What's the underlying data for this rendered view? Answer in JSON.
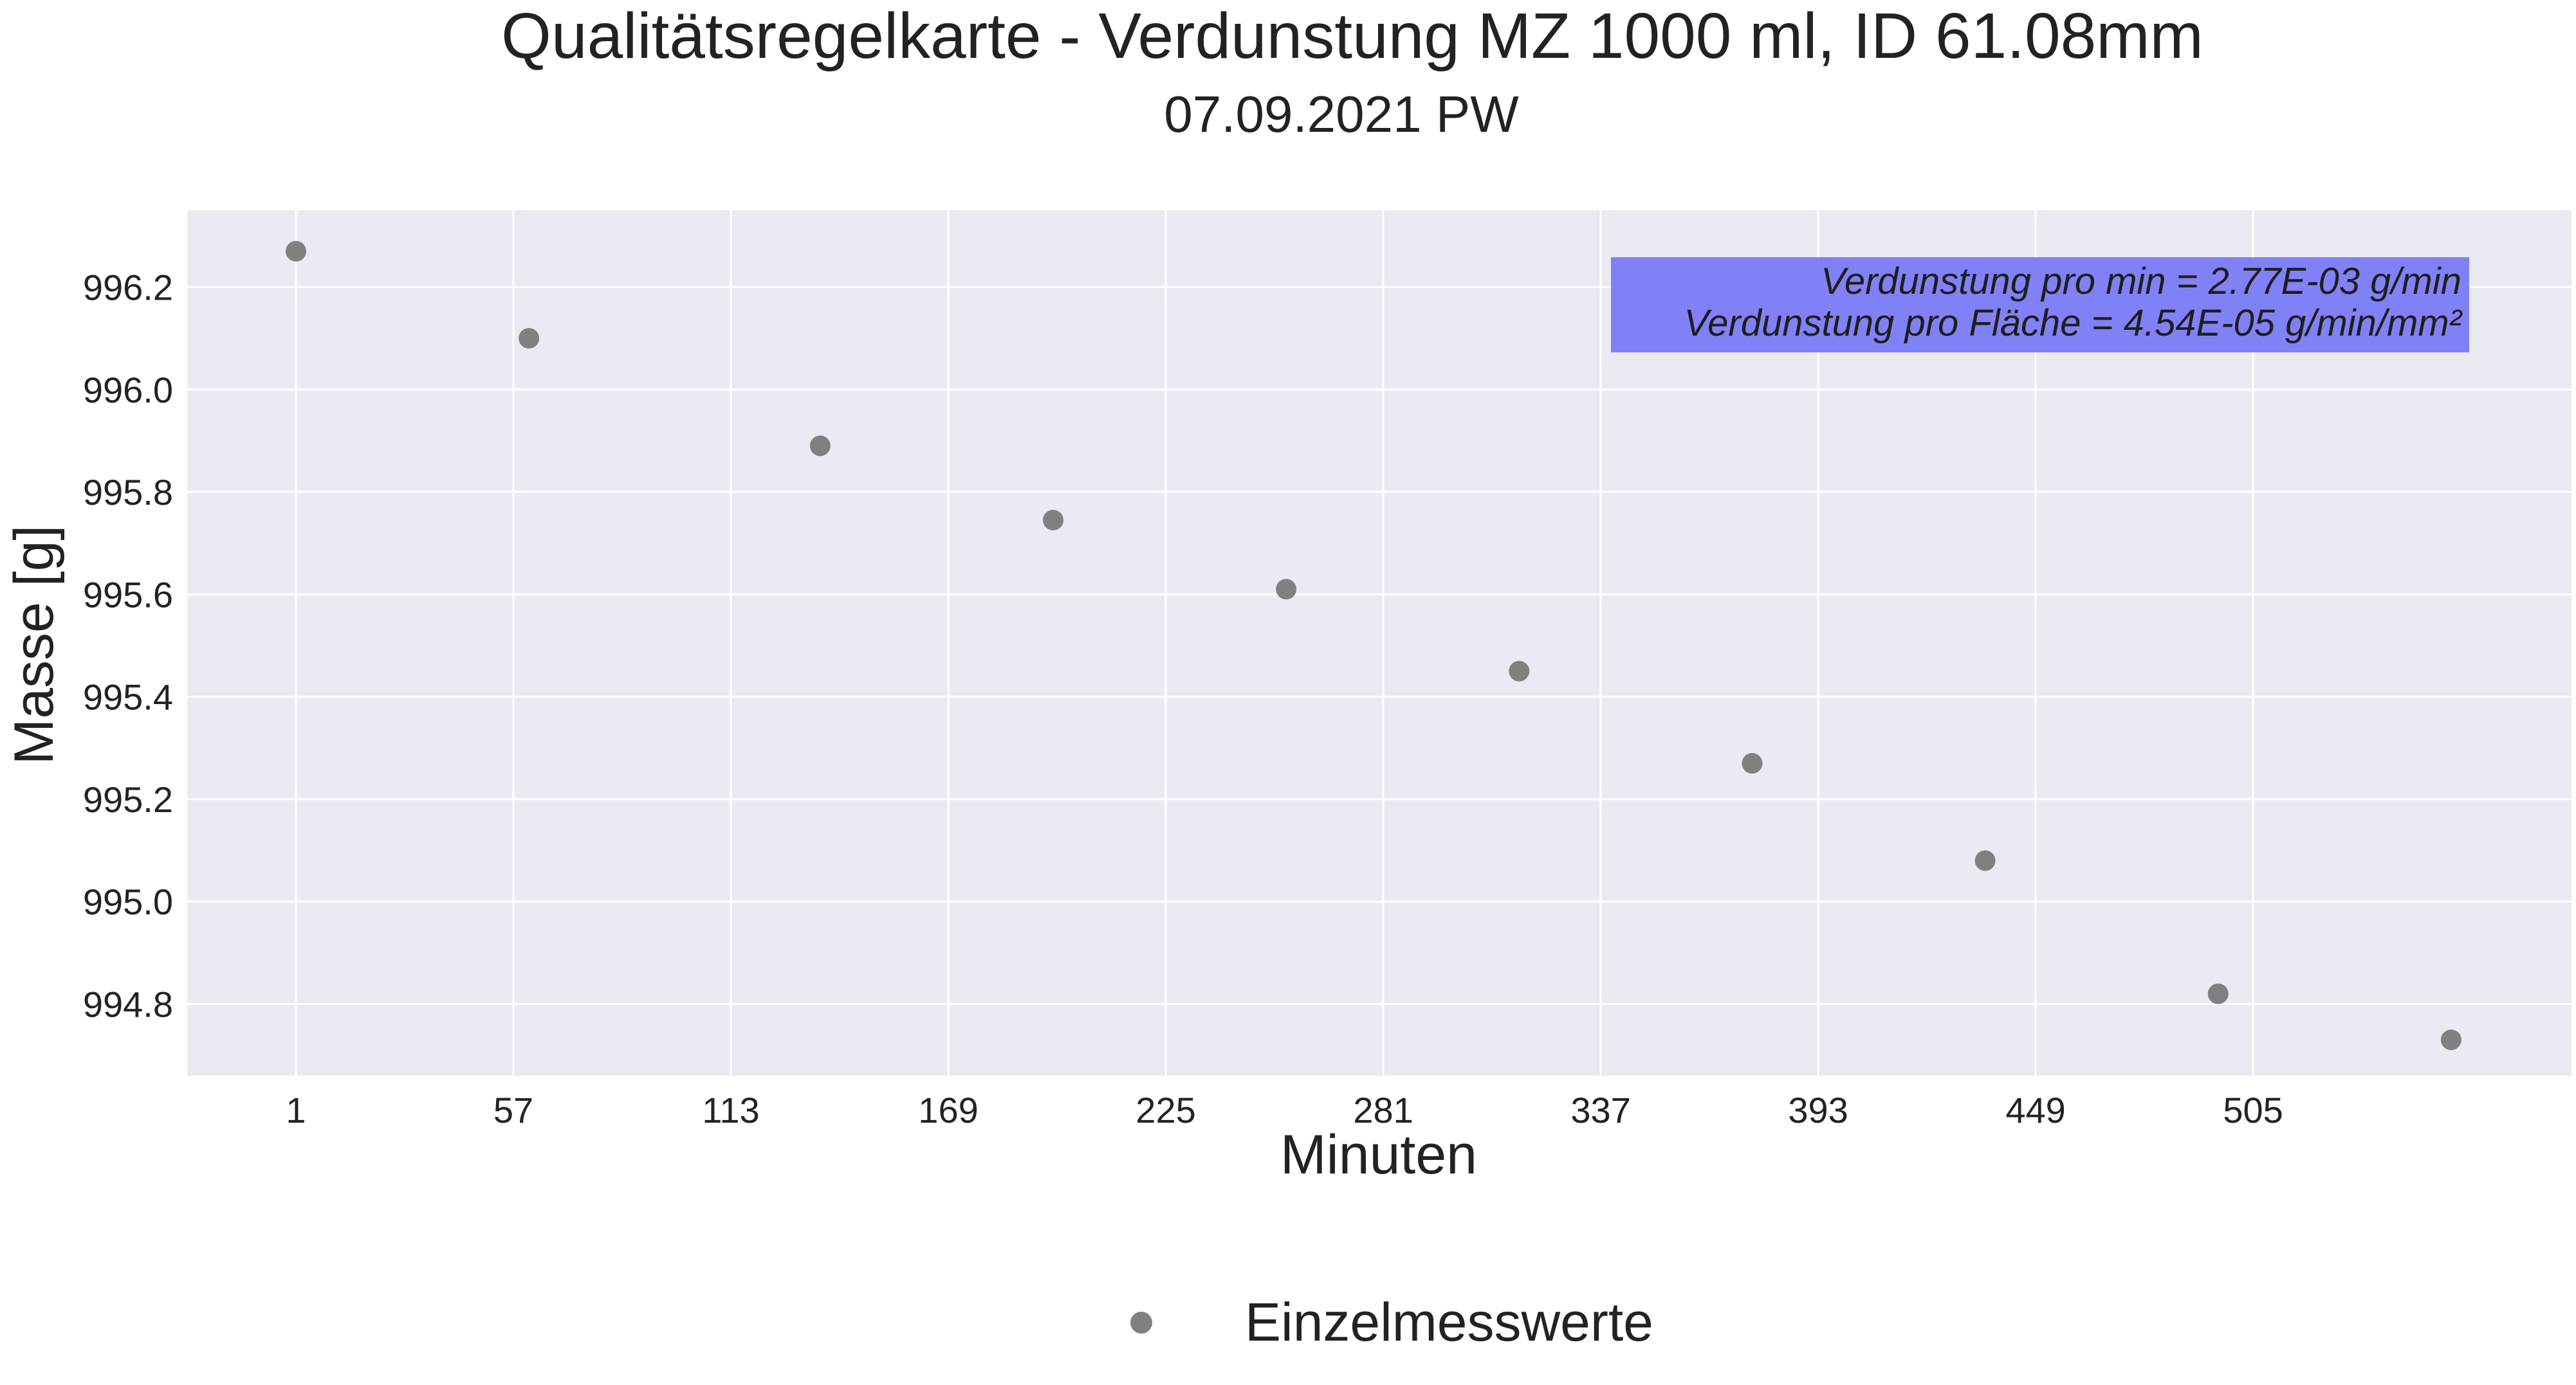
{
  "chart_data": {
    "type": "scatter",
    "title": "Qualitätsregelkarte - Verdunstung MZ 1000 ml, ID 61.08mm",
    "subtitle": "07.09.2021 PW",
    "xlabel": "Minuten",
    "ylabel": "Masse [g]",
    "x_ticks": [
      "1",
      "57",
      "113",
      "169",
      "225",
      "281",
      "337",
      "393",
      "449",
      "505"
    ],
    "y_ticks": [
      "996.2",
      "996.0",
      "995.8",
      "995.6",
      "995.4",
      "995.2",
      "995.0",
      "994.8"
    ],
    "xlim": [
      -27,
      587
    ],
    "ylim": [
      994.66,
      996.35
    ],
    "grid": true,
    "legend_position": "bottom-center",
    "series": [
      {
        "name": "Einzelmesswerte",
        "color": "#808080",
        "x": [
          1,
          61,
          136,
          196,
          256,
          316,
          376,
          436,
          496,
          556
        ],
        "y": [
          996.27,
          996.1,
          995.89,
          995.745,
          995.61,
          995.45,
          995.27,
          995.08,
          994.82,
          994.73
        ]
      }
    ],
    "annotation": {
      "line1": "Verdunstung pro min = 2.77E-03 g/min",
      "line2": "Verdunstung pro Fläche = 4.54E-05 g/min/mm²",
      "background": "#7b7bf7"
    },
    "plot_background": "#eaeaf2",
    "grid_color": "#ffffff"
  }
}
